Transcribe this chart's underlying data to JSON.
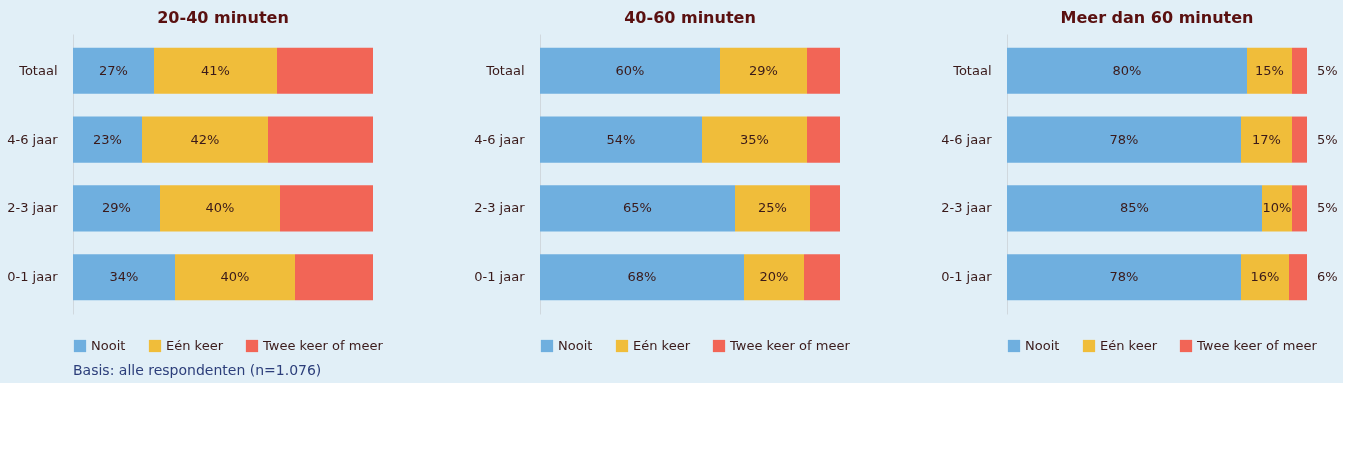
{
  "chart_data": [
    {
      "type": "bar",
      "orientation": "horizontal",
      "stacked": true,
      "title": "20-40 minuten",
      "categories": [
        "Totaal",
        "4-6 jaar",
        "2-3 jaar",
        "0-1 jaar"
      ],
      "xlim": [
        0,
        100
      ],
      "tick_labels": "y",
      "legend": "bottom",
      "annotations": [
        "Basis: alle respondenten (n=1.076)"
      ],
      "series": [
        {
          "name": "Nooit",
          "color": "#6fafdf",
          "values": [
            27,
            23,
            29,
            34
          ],
          "value_labels": [
            "27%",
            "23%",
            "29%",
            "34%"
          ]
        },
        {
          "name": "Eén keer",
          "color": "#f0bd3a",
          "values": [
            41,
            42,
            40,
            40
          ],
          "value_labels": [
            "41%",
            "42%",
            "40%",
            "40%"
          ]
        },
        {
          "name": "Twee keer of meer",
          "color": "#f26556",
          "values": [
            32,
            35,
            31,
            26
          ],
          "value_labels": [
            null,
            null,
            null,
            null
          ]
        }
      ]
    },
    {
      "type": "bar",
      "orientation": "horizontal",
      "stacked": true,
      "title": "40-60 minuten",
      "categories": [
        "Totaal",
        "4-6 jaar",
        "2-3 jaar",
        "0-1 jaar"
      ],
      "xlim": [
        0,
        100
      ],
      "tick_labels": "y",
      "legend": "bottom",
      "series": [
        {
          "name": "Nooit",
          "color": "#6fafdf",
          "values": [
            60,
            54,
            65,
            68
          ],
          "value_labels": [
            "60%",
            "54%",
            "65%",
            "68%"
          ]
        },
        {
          "name": "Eén keer",
          "color": "#f0bd3a",
          "values": [
            29,
            35,
            25,
            20
          ],
          "value_labels": [
            "29%",
            "35%",
            "25%",
            "20%"
          ]
        },
        {
          "name": "Twee keer of meer",
          "color": "#f26556",
          "values": [
            11,
            11,
            10,
            12
          ],
          "value_labels": [
            null,
            null,
            null,
            null
          ]
        }
      ]
    },
    {
      "type": "bar",
      "orientation": "horizontal",
      "stacked": true,
      "title": "Meer dan 60 minuten",
      "categories": [
        "Totaal",
        "4-6 jaar",
        "2-3 jaar",
        "0-1 jaar"
      ],
      "xlim": [
        0,
        100
      ],
      "tick_labels": "y",
      "legend": "bottom",
      "series": [
        {
          "name": "Nooit",
          "color": "#6fafdf",
          "values": [
            80,
            78,
            85,
            78
          ],
          "value_labels": [
            "80%",
            "78%",
            "85%",
            "78%"
          ]
        },
        {
          "name": "Eén keer",
          "color": "#f0bd3a",
          "values": [
            15,
            17,
            10,
            16
          ],
          "value_labels": [
            "15%",
            "17%",
            "10%",
            "16%"
          ]
        },
        {
          "name": "Twee keer of meer",
          "color": "#f26556",
          "values": [
            5,
            5,
            5,
            6
          ],
          "value_labels": [
            "5%",
            "5%",
            "5%",
            "6%"
          ]
        }
      ]
    }
  ]
}
